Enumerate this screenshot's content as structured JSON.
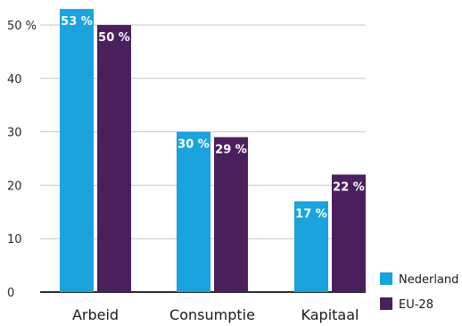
{
  "chart_data": {
    "type": "bar",
    "title": "",
    "xlabel": "",
    "ylabel": "",
    "categories": [
      "Arbeid",
      "Consumptie",
      "Kapitaal"
    ],
    "series": [
      {
        "name": "Nederland",
        "color": "#1aa3dd",
        "values": [
          53,
          30,
          17
        ],
        "labels": [
          "53 %",
          "30 %",
          "17 %"
        ]
      },
      {
        "name": "EU-28",
        "color": "#4a1f5c",
        "values": [
          50,
          29,
          22
        ],
        "labels": [
          "50 %",
          "29 %",
          "22 %"
        ]
      }
    ],
    "ylim": [
      0,
      50
    ],
    "yticks": [
      0,
      10,
      20,
      30,
      40,
      50
    ],
    "ytick_labels": [
      "0",
      "10",
      "20",
      "30",
      "40",
      "50 %"
    ],
    "grid": true,
    "legend_position": "bottom-right"
  }
}
